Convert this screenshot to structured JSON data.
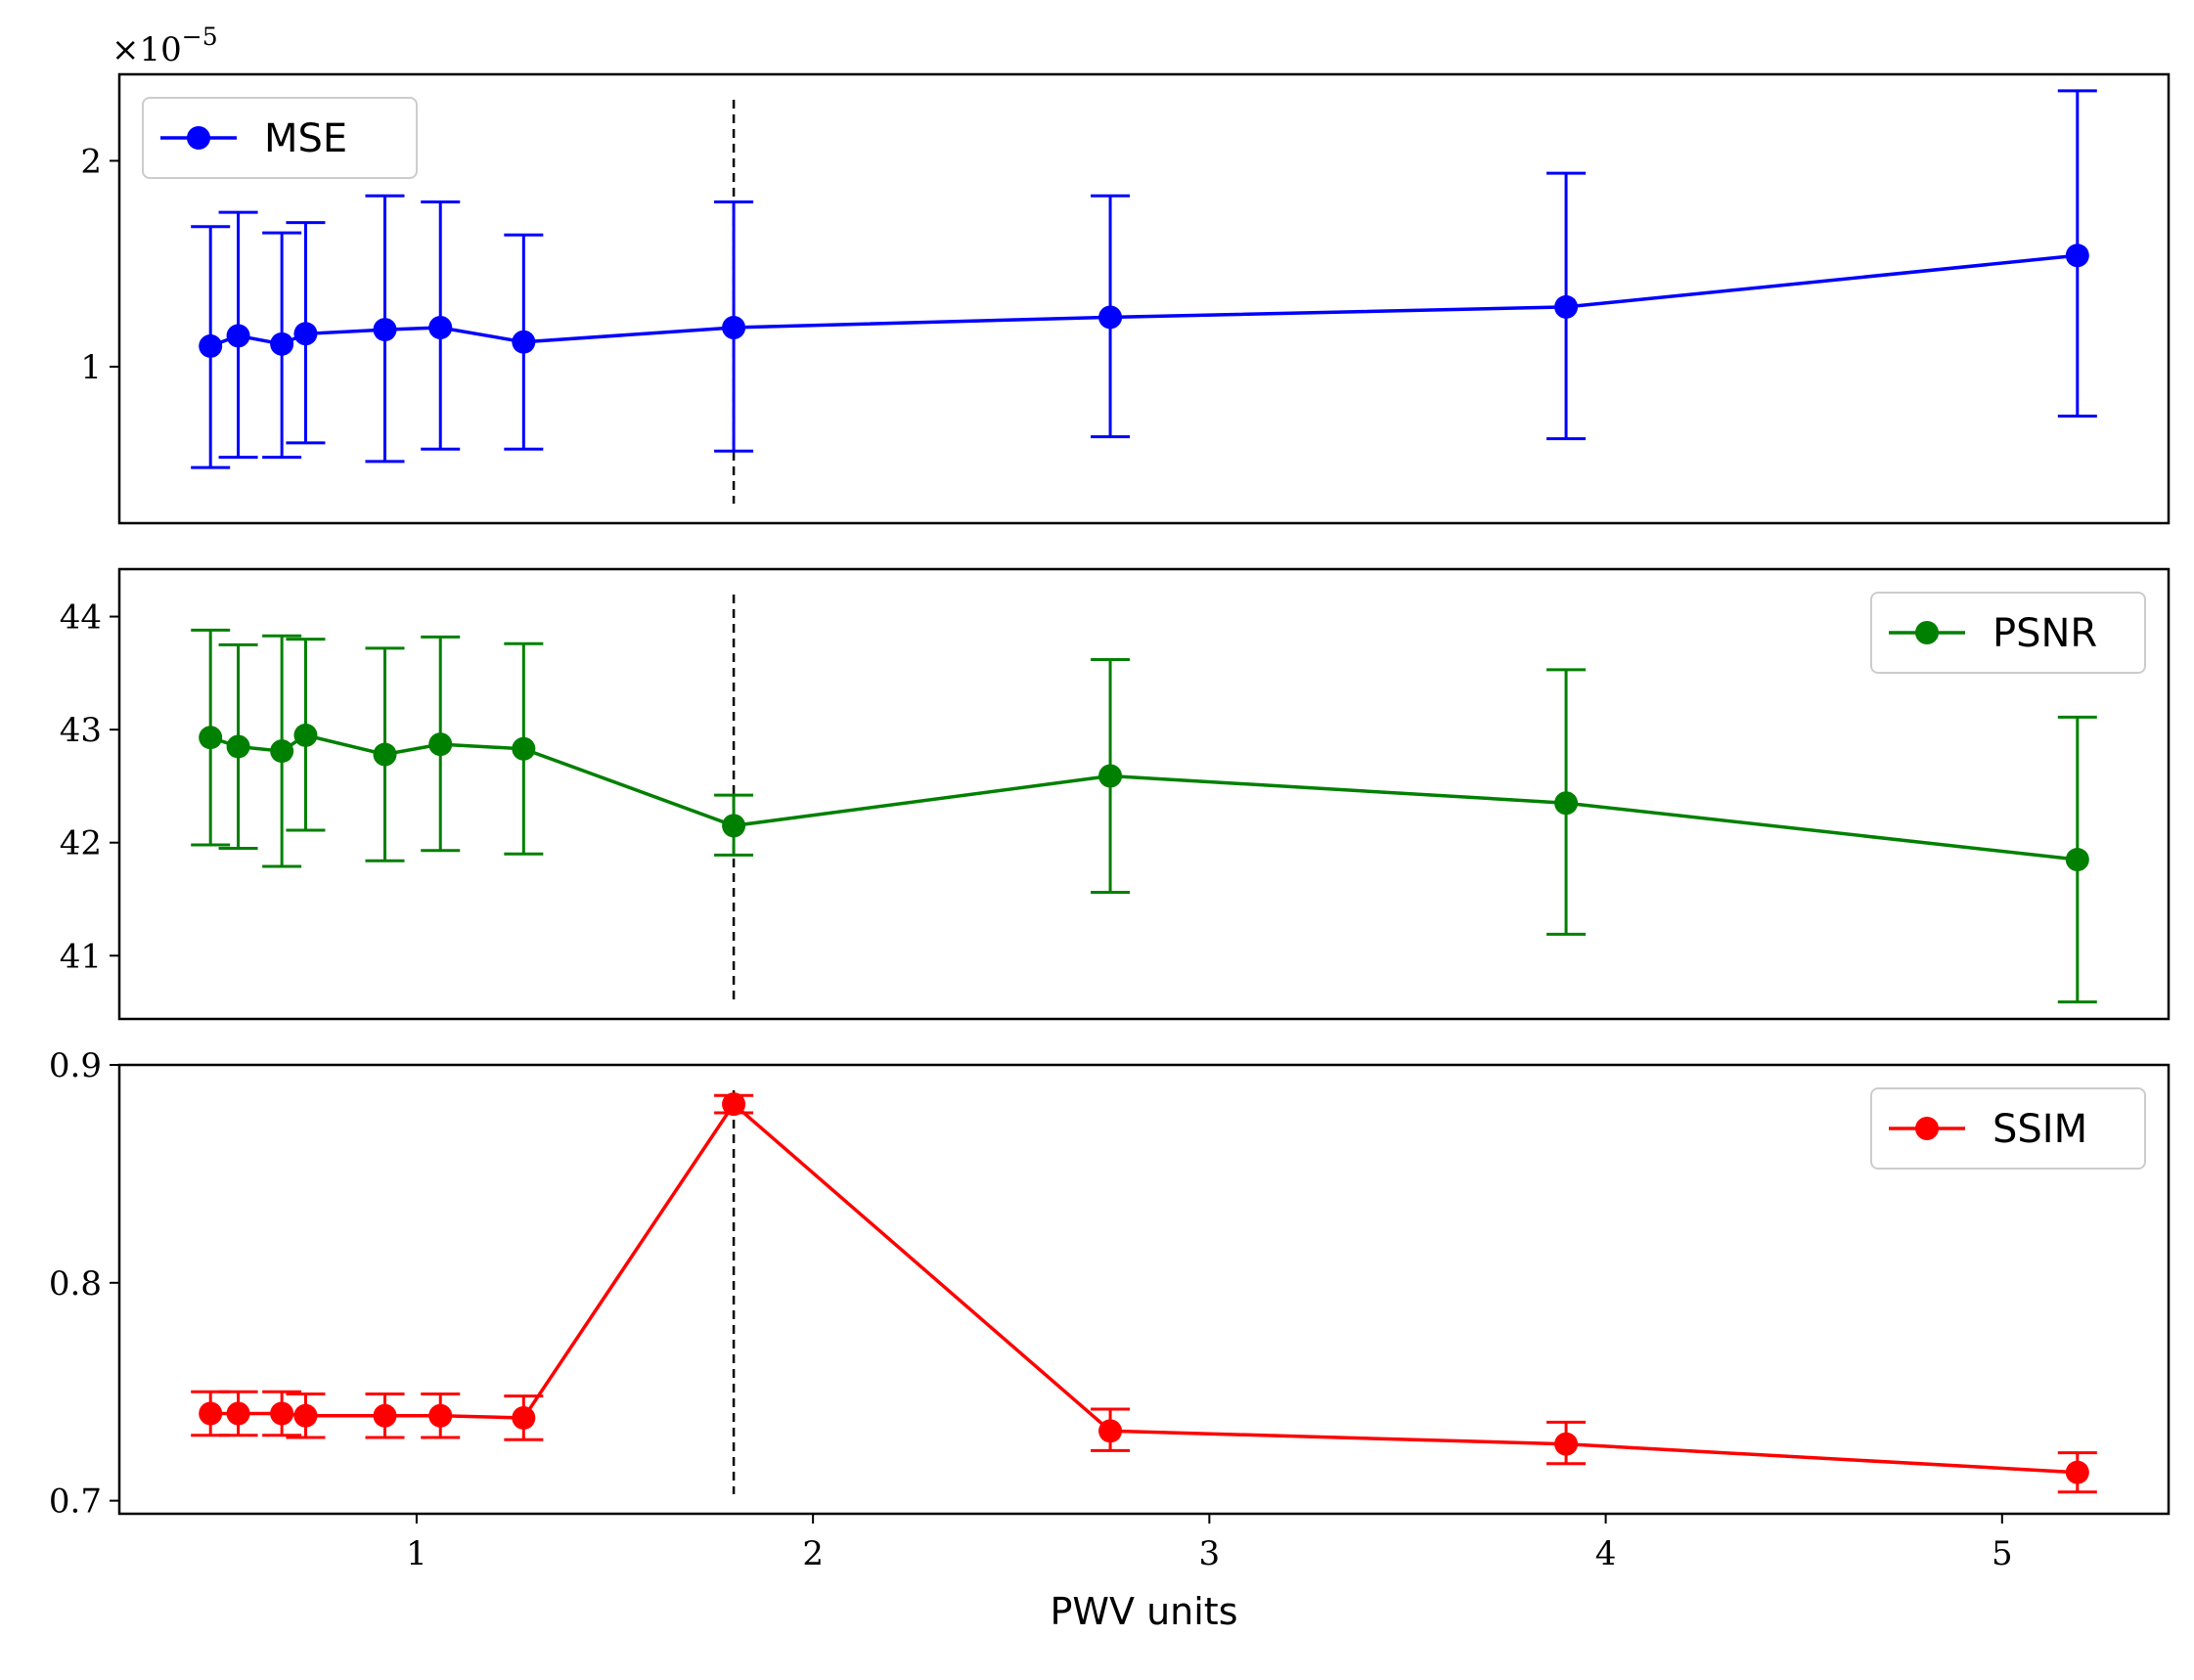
{
  "chart_data": [
    {
      "type": "line",
      "panel": "top",
      "offset_text": "×10^-5",
      "offset_base": "×10",
      "offset_exp": "−5",
      "x": [
        0.48,
        0.55,
        0.66,
        0.72,
        0.92,
        1.06,
        1.27,
        1.8,
        2.75,
        3.9,
        5.19
      ],
      "series": [
        {
          "name": "MSE",
          "color": "#0000ff",
          "values": [
            1.1,
            1.15,
            1.11,
            1.16,
            1.18,
            1.19,
            1.12,
            1.19,
            1.24,
            1.29,
            1.54
          ],
          "err_low": [
            0.51,
            0.56,
            0.56,
            0.63,
            0.54,
            0.6,
            0.6,
            0.59,
            0.66,
            0.65,
            0.76
          ],
          "err_high": [
            1.68,
            1.75,
            1.65,
            1.7,
            1.83,
            1.8,
            1.64,
            1.8,
            1.83,
            1.94,
            2.34
          ]
        }
      ],
      "yticks": [
        1,
        2
      ],
      "ylim": [
        0.24,
        2.42
      ],
      "xlim": [
        0.25,
        5.42
      ],
      "vline_x": 1.8,
      "legend_loc": "upper-left"
    },
    {
      "type": "line",
      "panel": "middle",
      "x": [
        0.48,
        0.55,
        0.66,
        0.72,
        0.92,
        1.06,
        1.27,
        1.8,
        2.75,
        3.9,
        5.19
      ],
      "series": [
        {
          "name": "PSNR",
          "color": "#008000",
          "values": [
            42.93,
            42.85,
            42.81,
            42.95,
            42.78,
            42.87,
            42.83,
            42.15,
            42.59,
            42.35,
            41.85
          ],
          "err_low": [
            41.98,
            41.95,
            41.79,
            42.11,
            41.84,
            41.93,
            41.9,
            41.89,
            41.56,
            41.19,
            40.59
          ],
          "err_high": [
            43.88,
            43.75,
            43.83,
            43.8,
            43.72,
            43.82,
            43.76,
            42.42,
            43.62,
            43.53,
            43.11
          ]
        }
      ],
      "yticks": [
        41,
        42,
        43,
        44
      ],
      "ylim": [
        40.44,
        44.42
      ],
      "xlim": [
        0.25,
        5.42
      ],
      "vline_x": 1.8,
      "legend_loc": "upper-right"
    },
    {
      "type": "line",
      "panel": "bottom",
      "x": [
        0.48,
        0.55,
        0.66,
        0.72,
        0.92,
        1.06,
        1.27,
        1.8,
        2.75,
        3.9,
        5.19
      ],
      "series": [
        {
          "name": "SSIM",
          "color": "#ff0000",
          "values": [
            0.74,
            0.74,
            0.74,
            0.739,
            0.739,
            0.739,
            0.738,
            0.882,
            0.732,
            0.726,
            0.713
          ],
          "err_low": [
            0.73,
            0.73,
            0.73,
            0.729,
            0.729,
            0.729,
            0.728,
            0.878,
            0.723,
            0.717,
            0.704
          ],
          "err_high": [
            0.75,
            0.75,
            0.75,
            0.749,
            0.749,
            0.749,
            0.748,
            0.886,
            0.742,
            0.736,
            0.722
          ]
        }
      ],
      "yticks": [
        0.7,
        0.8,
        0.9
      ],
      "ytick_labels": [
        "0.7",
        "0.8",
        "0.9"
      ],
      "ylim": [
        0.694,
        0.9
      ],
      "xlim": [
        0.25,
        5.42
      ],
      "xticks": [
        1,
        2,
        3,
        4,
        5
      ],
      "xlabel": "PWV units",
      "vline_x": 1.8,
      "legend_loc": "upper-right"
    }
  ]
}
